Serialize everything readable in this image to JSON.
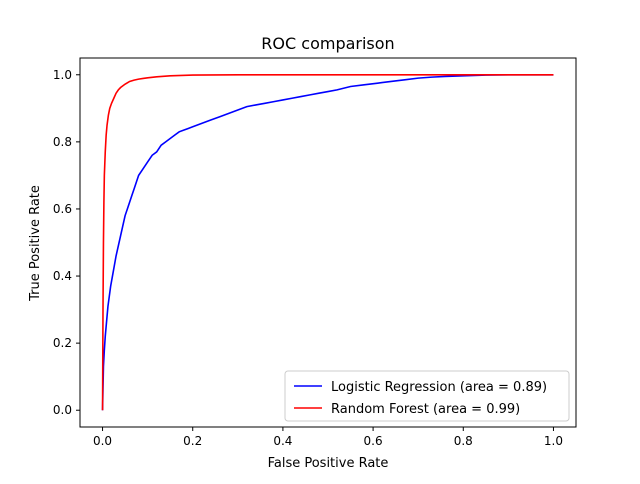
{
  "chart_data": {
    "type": "line",
    "title": "ROC comparison",
    "xlabel": "False Positive Rate",
    "ylabel": "True Positive Rate",
    "xlim": [
      -0.05,
      1.05
    ],
    "ylim": [
      -0.05,
      1.05
    ],
    "xticks": [
      "0.0",
      "0.2",
      "0.4",
      "0.6",
      "0.8",
      "1.0"
    ],
    "yticks": [
      "0.0",
      "0.2",
      "0.4",
      "0.6",
      "0.8",
      "1.0"
    ],
    "grid": false,
    "legend_position": "lower-right",
    "series": [
      {
        "name": "Logistic Regression (area = 0.89)",
        "color": "#0000ff",
        "x": [
          0.0,
          0.002,
          0.004,
          0.006,
          0.008,
          0.01,
          0.012,
          0.015,
          0.018,
          0.022,
          0.026,
          0.03,
          0.035,
          0.04,
          0.045,
          0.05,
          0.055,
          0.06,
          0.065,
          0.07,
          0.075,
          0.08,
          0.09,
          0.1,
          0.11,
          0.12,
          0.13,
          0.14,
          0.15,
          0.16,
          0.17,
          0.18,
          0.19,
          0.2,
          0.22,
          0.24,
          0.26,
          0.28,
          0.3,
          0.32,
          0.34,
          0.36,
          0.38,
          0.4,
          0.42,
          0.44,
          0.46,
          0.48,
          0.5,
          0.52,
          0.55,
          0.58,
          0.61,
          0.64,
          0.67,
          0.7,
          0.73,
          0.76,
          0.8,
          0.85,
          0.9,
          0.95,
          1.0
        ],
        "y": [
          0.0,
          0.13,
          0.18,
          0.22,
          0.25,
          0.28,
          0.31,
          0.34,
          0.37,
          0.4,
          0.43,
          0.46,
          0.49,
          0.52,
          0.55,
          0.58,
          0.6,
          0.62,
          0.64,
          0.66,
          0.68,
          0.7,
          0.72,
          0.74,
          0.76,
          0.77,
          0.79,
          0.8,
          0.81,
          0.82,
          0.83,
          0.835,
          0.84,
          0.845,
          0.855,
          0.865,
          0.875,
          0.885,
          0.895,
          0.905,
          0.91,
          0.915,
          0.92,
          0.925,
          0.93,
          0.935,
          0.94,
          0.945,
          0.95,
          0.955,
          0.965,
          0.97,
          0.975,
          0.98,
          0.985,
          0.99,
          0.993,
          0.995,
          0.997,
          0.999,
          1.0,
          1.0,
          1.0
        ]
      },
      {
        "name": "Random Forest (area = 0.99)",
        "color": "#ff0000",
        "x": [
          0.0,
          0.001,
          0.002,
          0.003,
          0.004,
          0.006,
          0.008,
          0.01,
          0.013,
          0.016,
          0.02,
          0.025,
          0.03,
          0.035,
          0.04,
          0.05,
          0.06,
          0.07,
          0.08,
          0.09,
          0.1,
          0.12,
          0.15,
          0.2,
          0.3,
          0.4,
          0.5,
          0.6,
          0.7,
          0.8,
          0.9,
          1.0
        ],
        "y": [
          0.0,
          0.3,
          0.5,
          0.62,
          0.7,
          0.77,
          0.82,
          0.85,
          0.88,
          0.9,
          0.915,
          0.93,
          0.945,
          0.955,
          0.962,
          0.972,
          0.98,
          0.984,
          0.987,
          0.989,
          0.991,
          0.994,
          0.997,
          0.999,
          1.0,
          1.0,
          1.0,
          1.0,
          1.0,
          1.0,
          1.0,
          1.0
        ]
      }
    ]
  }
}
